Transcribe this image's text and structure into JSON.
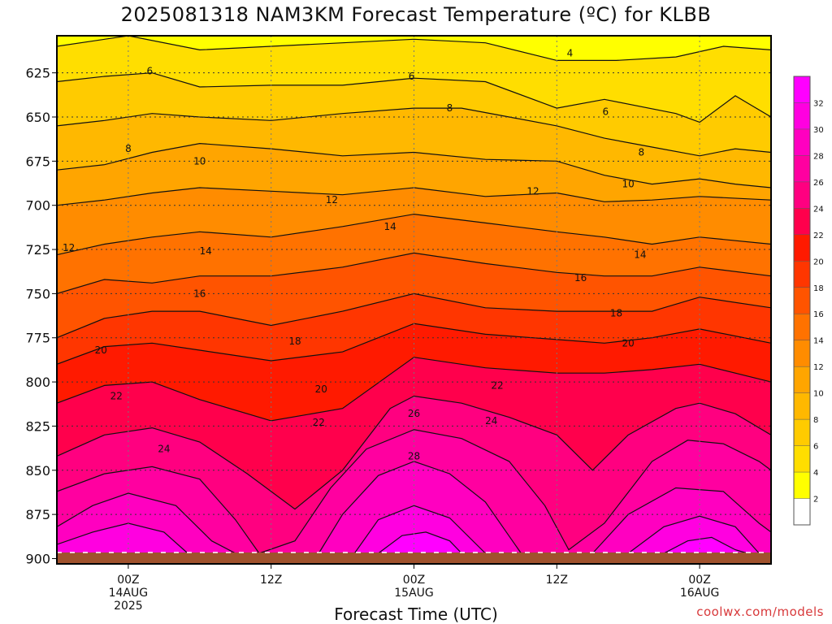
{
  "title": "2025081318 NAM3KM Forecast Temperature (ºC) for KLBB",
  "credit": "coolwx.com/models",
  "chart_data": {
    "type": "heatmap",
    "title": "2025081318 NAM3KM Forecast Temperature (ºC) for KLBB",
    "xlabel": "Forecast Time (UTC)",
    "ylabel": "",
    "x_unit": "hours after 2025081318 (18Z 13 Aug 2025)",
    "xlim": [
      0,
      60
    ],
    "ylim": [
      604,
      903
    ],
    "y_scale": "pressure (hPa), increasing downward",
    "grid": true,
    "y_ticks": [
      625,
      650,
      675,
      700,
      725,
      750,
      775,
      800,
      825,
      850,
      875,
      900
    ],
    "x_ticks": [
      {
        "x": 6,
        "lines": [
          "00Z",
          "14AUG",
          "2025"
        ]
      },
      {
        "x": 18,
        "lines": [
          "12Z"
        ]
      },
      {
        "x": 30,
        "lines": [
          "00Z",
          "15AUG"
        ]
      },
      {
        "x": 42,
        "lines": [
          "12Z"
        ]
      },
      {
        "x": 54,
        "lines": [
          "00Z",
          "16AUG"
        ]
      }
    ],
    "colorbar": {
      "ticks": [
        2,
        4,
        6,
        8,
        10,
        12,
        14,
        16,
        18,
        20,
        22,
        24,
        26,
        28,
        30,
        32
      ],
      "colors": [
        "#ffffff",
        "#ffff00",
        "#ffde00",
        "#ffcb00",
        "#ffb800",
        "#ffa500",
        "#ff8c00",
        "#ff7200",
        "#ff5400",
        "#ff3600",
        "#ff1a00",
        "#ff004c",
        "#ff0080",
        "#ff00a0",
        "#ff00c0",
        "#ff00e0",
        "#ff00ff"
      ]
    },
    "level_colors": [
      "#ffff00",
      "#ffde00",
      "#ffcb00",
      "#ffb800",
      "#ffa500",
      "#ff8c00",
      "#ff7200",
      "#ff5400",
      "#ff3600",
      "#ff1a00",
      "#ff004c",
      "#ff0080",
      "#ff00a0",
      "#ff00c0",
      "#ff00e0",
      "#ff00ff"
    ],
    "ground_color": "#a0522d",
    "contours": [
      {
        "t": 4,
        "pts": [
          [
            0,
            610
          ],
          [
            6,
            604
          ],
          [
            12,
            612
          ],
          [
            18,
            610
          ],
          [
            24,
            608
          ],
          [
            30,
            606
          ],
          [
            36,
            608
          ],
          [
            42,
            618
          ],
          [
            47,
            618
          ],
          [
            52,
            616
          ],
          [
            56,
            610
          ],
          [
            60,
            612
          ]
        ]
      },
      {
        "t": 6,
        "pts": [
          [
            0,
            630
          ],
          [
            4,
            627
          ],
          [
            8,
            625
          ],
          [
            12,
            633
          ],
          [
            18,
            632
          ],
          [
            24,
            632
          ],
          [
            30,
            628
          ],
          [
            36,
            630
          ],
          [
            42,
            645
          ],
          [
            46,
            640
          ],
          [
            52,
            648
          ],
          [
            54,
            653
          ],
          [
            57,
            638
          ],
          [
            60,
            650
          ]
        ]
      },
      {
        "t": 8,
        "pts": [
          [
            0,
            655
          ],
          [
            4,
            652
          ],
          [
            8,
            648
          ],
          [
            12,
            650
          ],
          [
            18,
            652
          ],
          [
            24,
            648
          ],
          [
            30,
            645
          ],
          [
            34,
            645
          ],
          [
            38,
            650
          ],
          [
            42,
            655
          ],
          [
            46,
            662
          ],
          [
            50,
            667
          ],
          [
            54,
            672
          ],
          [
            57,
            668
          ],
          [
            60,
            670
          ]
        ]
      },
      {
        "t": 10,
        "pts": [
          [
            0,
            680
          ],
          [
            4,
            677
          ],
          [
            8,
            670
          ],
          [
            12,
            665
          ],
          [
            18,
            668
          ],
          [
            24,
            672
          ],
          [
            30,
            670
          ],
          [
            36,
            674
          ],
          [
            42,
            675
          ],
          [
            46,
            683
          ],
          [
            50,
            688
          ],
          [
            54,
            685
          ],
          [
            57,
            688
          ],
          [
            60,
            690
          ]
        ]
      },
      {
        "t": 12,
        "pts": [
          [
            0,
            700
          ],
          [
            4,
            697
          ],
          [
            8,
            693
          ],
          [
            12,
            690
          ],
          [
            18,
            692
          ],
          [
            24,
            694
          ],
          [
            30,
            690
          ],
          [
            36,
            695
          ],
          [
            42,
            693
          ],
          [
            46,
            698
          ],
          [
            50,
            697
          ],
          [
            54,
            695
          ],
          [
            60,
            697
          ]
        ]
      },
      {
        "t": 14,
        "pts": [
          [
            0,
            728
          ],
          [
            4,
            722
          ],
          [
            8,
            718
          ],
          [
            12,
            715
          ],
          [
            18,
            718
          ],
          [
            24,
            712
          ],
          [
            30,
            705
          ],
          [
            36,
            710
          ],
          [
            42,
            715
          ],
          [
            46,
            718
          ],
          [
            50,
            722
          ],
          [
            54,
            718
          ],
          [
            60,
            722
          ]
        ]
      },
      {
        "t": 16,
        "pts": [
          [
            0,
            750
          ],
          [
            4,
            742
          ],
          [
            8,
            744
          ],
          [
            12,
            740
          ],
          [
            18,
            740
          ],
          [
            24,
            735
          ],
          [
            30,
            727
          ],
          [
            36,
            733
          ],
          [
            42,
            738
          ],
          [
            46,
            740
          ],
          [
            50,
            740
          ],
          [
            54,
            735
          ],
          [
            60,
            740
          ]
        ]
      },
      {
        "t": 18,
        "pts": [
          [
            0,
            775
          ],
          [
            4,
            764
          ],
          [
            8,
            760
          ],
          [
            12,
            760
          ],
          [
            18,
            768
          ],
          [
            24,
            760
          ],
          [
            30,
            750
          ],
          [
            36,
            758
          ],
          [
            42,
            760
          ],
          [
            46,
            760
          ],
          [
            50,
            760
          ],
          [
            54,
            752
          ],
          [
            60,
            758
          ]
        ]
      },
      {
        "t": 20,
        "pts": [
          [
            0,
            790
          ],
          [
            4,
            780
          ],
          [
            8,
            778
          ],
          [
            12,
            782
          ],
          [
            18,
            788
          ],
          [
            24,
            783
          ],
          [
            30,
            767
          ],
          [
            36,
            773
          ],
          [
            42,
            776
          ],
          [
            46,
            778
          ],
          [
            50,
            775
          ],
          [
            54,
            770
          ],
          [
            60,
            778
          ]
        ]
      },
      {
        "t": 22,
        "pts": [
          [
            0,
            812
          ],
          [
            4,
            802
          ],
          [
            8,
            800
          ],
          [
            12,
            810
          ],
          [
            18,
            822
          ],
          [
            24,
            815
          ],
          [
            30,
            786
          ],
          [
            36,
            792
          ],
          [
            42,
            795
          ],
          [
            46,
            795
          ],
          [
            50,
            793
          ],
          [
            54,
            790
          ],
          [
            60,
            800
          ]
        ]
      },
      {
        "t": 24,
        "pts": [
          [
            0,
            842
          ],
          [
            4,
            830
          ],
          [
            8,
            826
          ],
          [
            12,
            834
          ],
          [
            16,
            852
          ],
          [
            20,
            872
          ],
          [
            24,
            850
          ],
          [
            28,
            815
          ],
          [
            30,
            808
          ],
          [
            34,
            812
          ],
          [
            38,
            820
          ],
          [
            42,
            830
          ],
          [
            45,
            850
          ],
          [
            48,
            830
          ],
          [
            52,
            815
          ],
          [
            54,
            812
          ],
          [
            57,
            818
          ],
          [
            60,
            830
          ]
        ]
      },
      {
        "t": 26,
        "pts": [
          [
            0,
            862
          ],
          [
            4,
            852
          ],
          [
            8,
            848
          ],
          [
            12,
            855
          ],
          [
            15,
            878
          ],
          [
            17,
            897
          ],
          [
            20,
            890
          ],
          [
            23,
            860
          ],
          [
            26,
            838
          ],
          [
            30,
            827
          ],
          [
            34,
            832
          ],
          [
            38,
            845
          ],
          [
            41,
            870
          ],
          [
            43,
            895
          ],
          [
            46,
            880
          ],
          [
            50,
            845
          ],
          [
            53,
            833
          ],
          [
            56,
            835
          ],
          [
            59,
            845
          ],
          [
            60,
            850
          ]
        ]
      },
      {
        "t": 28,
        "pts": [
          [
            0,
            882
          ],
          [
            3,
            870
          ],
          [
            6,
            863
          ],
          [
            10,
            870
          ],
          [
            13,
            890
          ],
          [
            15,
            897
          ]
        ]
      },
      {
        "t": 28,
        "pts": [
          [
            22,
            897
          ],
          [
            24,
            875
          ],
          [
            27,
            853
          ],
          [
            30,
            845
          ],
          [
            33,
            852
          ],
          [
            36,
            868
          ],
          [
            39,
            897
          ]
        ]
      },
      {
        "t": 28,
        "pts": [
          [
            45,
            897
          ],
          [
            48,
            875
          ],
          [
            52,
            860
          ],
          [
            56,
            862
          ],
          [
            59,
            880
          ],
          [
            60,
            885
          ]
        ]
      },
      {
        "t": 30,
        "pts": [
          [
            0,
            892
          ],
          [
            3,
            885
          ],
          [
            6,
            880
          ],
          [
            9,
            885
          ],
          [
            11,
            897
          ]
        ]
      },
      {
        "t": 30,
        "pts": [
          [
            25,
            897
          ],
          [
            27,
            878
          ],
          [
            30,
            870
          ],
          [
            33,
            877
          ],
          [
            36,
            897
          ]
        ]
      },
      {
        "t": 30,
        "pts": [
          [
            48,
            897
          ],
          [
            51,
            882
          ],
          [
            54,
            876
          ],
          [
            57,
            882
          ],
          [
            59,
            897
          ]
        ]
      },
      {
        "t": 32,
        "pts": [
          [
            27,
            897
          ],
          [
            29,
            887
          ],
          [
            31,
            885
          ],
          [
            33,
            890
          ],
          [
            34,
            897
          ]
        ]
      },
      {
        "t": 32,
        "pts": [
          [
            51,
            897
          ],
          [
            53,
            890
          ],
          [
            55,
            888
          ],
          [
            57,
            895
          ],
          [
            58,
            897
          ]
        ]
      }
    ],
    "contour_labels": [
      {
        "text": "4",
        "x": 43.1,
        "y": 614
      },
      {
        "text": "6",
        "x": 7.8,
        "y": 624
      },
      {
        "text": "6",
        "x": 29.8,
        "y": 627
      },
      {
        "text": "6",
        "x": 46.1,
        "y": 647
      },
      {
        "text": "8",
        "x": 33.0,
        "y": 645
      },
      {
        "text": "8",
        "x": 6.0,
        "y": 668
      },
      {
        "text": "8",
        "x": 49.1,
        "y": 670
      },
      {
        "text": "10",
        "x": 12.0,
        "y": 675
      },
      {
        "text": "10",
        "x": 48.0,
        "y": 688
      },
      {
        "text": "12",
        "x": 23.1,
        "y": 697
      },
      {
        "text": "12",
        "x": 40.0,
        "y": 692
      },
      {
        "text": "12",
        "x": 1.0,
        "y": 724
      },
      {
        "text": "14",
        "x": 28.0,
        "y": 712
      },
      {
        "text": "14",
        "x": 12.5,
        "y": 726
      },
      {
        "text": "14",
        "x": 49.0,
        "y": 728
      },
      {
        "text": "16",
        "x": 12.0,
        "y": 750
      },
      {
        "text": "16",
        "x": 44.0,
        "y": 741
      },
      {
        "text": "18",
        "x": 20.0,
        "y": 777
      },
      {
        "text": "18",
        "x": 47.0,
        "y": 761
      },
      {
        "text": "20",
        "x": 3.7,
        "y": 782
      },
      {
        "text": "20",
        "x": 22.2,
        "y": 804
      },
      {
        "text": "20",
        "x": 48.0,
        "y": 778
      },
      {
        "text": "22",
        "x": 5.0,
        "y": 808
      },
      {
        "text": "22",
        "x": 22.0,
        "y": 823
      },
      {
        "text": "22",
        "x": 37.0,
        "y": 802
      },
      {
        "text": "24",
        "x": 9.0,
        "y": 838
      },
      {
        "text": "24",
        "x": 36.5,
        "y": 822
      },
      {
        "text": "26",
        "x": 30.0,
        "y": 818
      },
      {
        "text": "28",
        "x": 30.0,
        "y": 842
      }
    ]
  }
}
